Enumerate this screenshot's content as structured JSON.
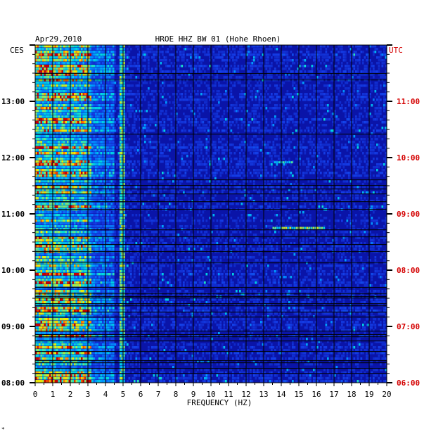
{
  "header": {
    "date": "Apr29,2010",
    "station": "HROE HHZ BW 01 (Hohe Rhoen)",
    "left_tz": "CES",
    "right_tz": "UTC"
  },
  "colors": {
    "background": "#0a14a8",
    "grid": "#000000",
    "utc_label": "#d40000"
  },
  "chart_data": {
    "type": "heatmap",
    "title": "HROE HHZ BW 01 (Hohe Rhoen)",
    "date": "Apr29,2010",
    "xlabel": "FREQUENCY (HZ)",
    "x_ticks": [
      0,
      1,
      2,
      3,
      4,
      5,
      6,
      7,
      8,
      9,
      10,
      11,
      12,
      13,
      14,
      15,
      16,
      17,
      18,
      19,
      20
    ],
    "xlim": [
      0,
      20
    ],
    "y_ticks_left": [
      "13:00",
      "12:00",
      "11:00",
      "10:00",
      "09:00",
      "08:00"
    ],
    "y_ticks_right": [
      "11:00",
      "10:00",
      "09:00",
      "08:00",
      "07:00",
      "06:00"
    ],
    "ylim_hours_utc": [
      6.0,
      12.0
    ],
    "time_axis": "top = latest",
    "features": [
      {
        "name": "low-frequency noise band",
        "freq_hz": [
          0,
          3.2
        ],
        "intensity": "high"
      },
      {
        "name": "5 Hz line",
        "freq_hz": [
          4.9,
          5.1
        ],
        "intensity": "medium"
      },
      {
        "name": "burst",
        "freq_hz": [
          13.5,
          16.5
        ],
        "utc": "08:45",
        "intensity": "high"
      },
      {
        "name": "burst",
        "freq_hz": [
          13.6,
          14.6
        ],
        "utc": "09:55",
        "intensity": "medium"
      }
    ]
  },
  "corner_mark": "*"
}
